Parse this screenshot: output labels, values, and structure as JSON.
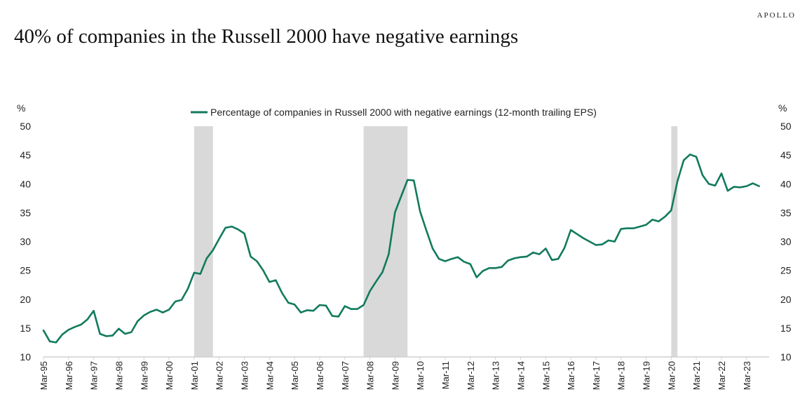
{
  "header": {
    "brand": "APOLLO",
    "title": "40% of companies in the Russell 2000 have negative earnings"
  },
  "colors": {
    "line": "#127a5d",
    "recession": "#d9d9d9",
    "axis": "#d0d0d0"
  },
  "chart_data": {
    "type": "line",
    "title": "40% of companies in the Russell 2000 have negative earnings",
    "ylabel_left": "%",
    "ylabel_right": "%",
    "ylim": [
      10,
      50
    ],
    "yticks": [
      10,
      15,
      20,
      25,
      30,
      35,
      40,
      45,
      50
    ],
    "xlim": [
      1995.0,
      2023.9
    ],
    "x_tick_labels": [
      "Mar-95",
      "Mar-96",
      "Mar-97",
      "Mar-98",
      "Mar-99",
      "Mar-00",
      "Mar-01",
      "Mar-02",
      "Mar-03",
      "Mar-04",
      "Mar-05",
      "Mar-06",
      "Mar-07",
      "Mar-08",
      "Mar-09",
      "Mar-10",
      "Mar-11",
      "Mar-12",
      "Mar-13",
      "Mar-14",
      "Mar-15",
      "Mar-16",
      "Mar-17",
      "Mar-18",
      "Mar-19",
      "Mar-20",
      "Mar-21",
      "Mar-22",
      "Mar-23"
    ],
    "legend_position": "top-center",
    "recessions": [
      [
        2001.0,
        2001.75
      ],
      [
        2007.75,
        2009.5
      ],
      [
        2020.0,
        2020.25
      ]
    ],
    "series": [
      {
        "name": "Percentage of companies in Russell 2000 with negative earnings (12-month trailing EPS)",
        "x": [
          1995.0,
          1995.25,
          1995.5,
          1995.75,
          1996.0,
          1996.25,
          1996.5,
          1996.75,
          1997.0,
          1997.25,
          1997.5,
          1997.75,
          1998.0,
          1998.25,
          1998.5,
          1998.75,
          1999.0,
          1999.25,
          1999.5,
          1999.75,
          2000.0,
          2000.25,
          2000.5,
          2000.75,
          2001.0,
          2001.25,
          2001.5,
          2001.75,
          2002.0,
          2002.25,
          2002.5,
          2002.75,
          2003.0,
          2003.25,
          2003.5,
          2003.75,
          2004.0,
          2004.25,
          2004.5,
          2004.75,
          2005.0,
          2005.25,
          2005.5,
          2005.75,
          2006.0,
          2006.25,
          2006.5,
          2006.75,
          2007.0,
          2007.25,
          2007.5,
          2007.75,
          2008.0,
          2008.25,
          2008.5,
          2008.75,
          2009.0,
          2009.25,
          2009.5,
          2009.75,
          2010.0,
          2010.25,
          2010.5,
          2010.75,
          2011.0,
          2011.25,
          2011.5,
          2011.75,
          2012.0,
          2012.25,
          2012.5,
          2012.75,
          2013.0,
          2013.25,
          2013.5,
          2013.75,
          2014.0,
          2014.25,
          2014.5,
          2014.75,
          2015.0,
          2015.25,
          2015.5,
          2015.75,
          2016.0,
          2016.25,
          2016.5,
          2016.75,
          2017.0,
          2017.25,
          2017.5,
          2017.75,
          2018.0,
          2018.25,
          2018.5,
          2018.75,
          2019.0,
          2019.25,
          2019.5,
          2019.75,
          2020.0,
          2020.25,
          2020.5,
          2020.75,
          2021.0,
          2021.25,
          2021.5,
          2021.75,
          2022.0,
          2022.25,
          2022.5,
          2022.75,
          2023.0,
          2023.25,
          2023.5
        ],
        "values": [
          14.6,
          12.7,
          12.5,
          13.9,
          14.7,
          15.2,
          15.6,
          16.5,
          18.0,
          14.0,
          13.6,
          13.7,
          14.9,
          14.0,
          14.3,
          16.2,
          17.2,
          17.8,
          18.2,
          17.7,
          18.2,
          19.6,
          19.9,
          21.8,
          24.6,
          24.4,
          27.1,
          28.5,
          30.5,
          32.4,
          32.6,
          32.1,
          31.4,
          27.4,
          26.6,
          25.0,
          23.0,
          23.3,
          21.1,
          19.4,
          19.1,
          17.7,
          18.1,
          18.0,
          19.0,
          18.9,
          17.1,
          17.0,
          18.8,
          18.3,
          18.3,
          19.0,
          21.4,
          23.1,
          24.7,
          27.8,
          35.1,
          37.9,
          40.7,
          40.6,
          35.2,
          31.9,
          28.8,
          27.0,
          26.6,
          27.0,
          27.3,
          26.5,
          26.1,
          23.8,
          24.9,
          25.4,
          25.4,
          25.6,
          26.7,
          27.1,
          27.3,
          27.4,
          28.1,
          27.8,
          28.8,
          26.8,
          27.0,
          28.9,
          32.0,
          31.3,
          30.6,
          30.0,
          29.4,
          29.5,
          30.2,
          30.0,
          32.2,
          32.3,
          32.3,
          32.6,
          32.9,
          33.8,
          33.5,
          34.3,
          35.4,
          40.5,
          44.1,
          45.1,
          44.7,
          41.5,
          40.0,
          39.7,
          41.8,
          38.8,
          39.5,
          39.4,
          39.6,
          40.1,
          39.6
        ]
      }
    ]
  }
}
